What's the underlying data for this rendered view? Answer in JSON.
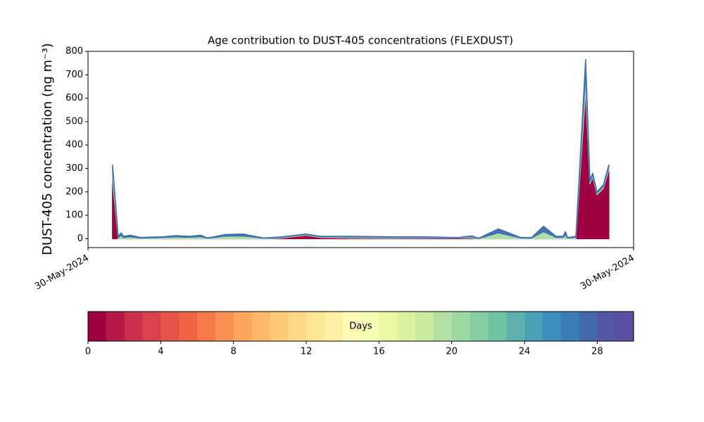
{
  "chart_data": {
    "type": "stacked_area",
    "title": "Age contribution to DUST-405 concentrations (FLEXDUST)",
    "y_label": "DUST-405 concentration (ng m⁻³)",
    "xlim": [
      0,
      24
    ],
    "xticks": [
      {
        "value": 0,
        "label": "30-May-2024"
      },
      {
        "value": 24,
        "label": "30-May-2024"
      }
    ],
    "ylim": [
      -38,
      800
    ],
    "yticks": [
      0,
      100,
      200,
      300,
      400,
      500,
      600,
      700,
      800
    ],
    "x": [
      1.08,
      1.24,
      1.33,
      1.46,
      1.55,
      1.86,
      2.32,
      3.25,
      3.87,
      4.49,
      4.95,
      5.26,
      6.04,
      6.81,
      7.74,
      8.52,
      9.6,
      10.22,
      11.61,
      13.16,
      14.71,
      16.26,
      16.88,
      17.19,
      18.05,
      19.04,
      19.51,
      20.04,
      20.59,
      20.9,
      21.0,
      21.09,
      21.46,
      21.89,
      22.08,
      22.2,
      22.39,
      22.67,
      22.91
    ],
    "series": [
      {
        "color": "#9e0142",
        "values": [
          250,
          90,
          0,
          0,
          0,
          0,
          0,
          0,
          0,
          0,
          0,
          0,
          0,
          0,
          0,
          3,
          15,
          5,
          3,
          2,
          3,
          3,
          3,
          0,
          0,
          0,
          0,
          0,
          0,
          0,
          0,
          0,
          0,
          640,
          235,
          265,
          188,
          215,
          295
        ]
      },
      {
        "color": "#abdda4",
        "values": [
          40,
          20,
          5,
          15,
          5,
          8,
          3,
          5,
          8,
          6,
          9,
          2,
          11,
          12,
          2,
          3,
          3,
          3,
          4,
          4,
          3,
          1,
          5,
          1,
          25,
          3,
          3,
          30,
          6,
          6,
          18,
          3,
          6,
          70,
          8,
          8,
          6,
          8,
          12
        ]
      },
      {
        "color": "#3f6fb5",
        "values": [
          25,
          10,
          5,
          10,
          5,
          7,
          2,
          3,
          5,
          4,
          6,
          1,
          7,
          8,
          1,
          2,
          2,
          2,
          3,
          2,
          2,
          1,
          4,
          1,
          17,
          2,
          2,
          23,
          4,
          4,
          12,
          2,
          4,
          55,
          7,
          7,
          6,
          7,
          8
        ]
      }
    ],
    "colorbar": {
      "label": "Days",
      "lim": [
        0,
        30
      ],
      "ticks": [
        0,
        4,
        8,
        12,
        16,
        20,
        24,
        28
      ],
      "colors": [
        "#9e0142",
        "#b41947",
        "#c9314b",
        "#d8434e",
        "#e45549",
        "#ee6445",
        "#f67a49",
        "#fa8f53",
        "#fca55d",
        "#fdb769",
        "#fec877",
        "#fed885",
        "#fee593",
        "#fff0a6",
        "#fffbb9",
        "#f7fcb3",
        "#ecf7a2",
        "#dcf1a0",
        "#c9e99e",
        "#b3e0a2",
        "#9dd7a4",
        "#86cea4",
        "#70c4a4",
        "#5db0ab",
        "#4aa0b4",
        "#3a8fbd",
        "#3b7db8",
        "#4569af",
        "#5357a5",
        "#5e4fa2"
      ]
    }
  }
}
